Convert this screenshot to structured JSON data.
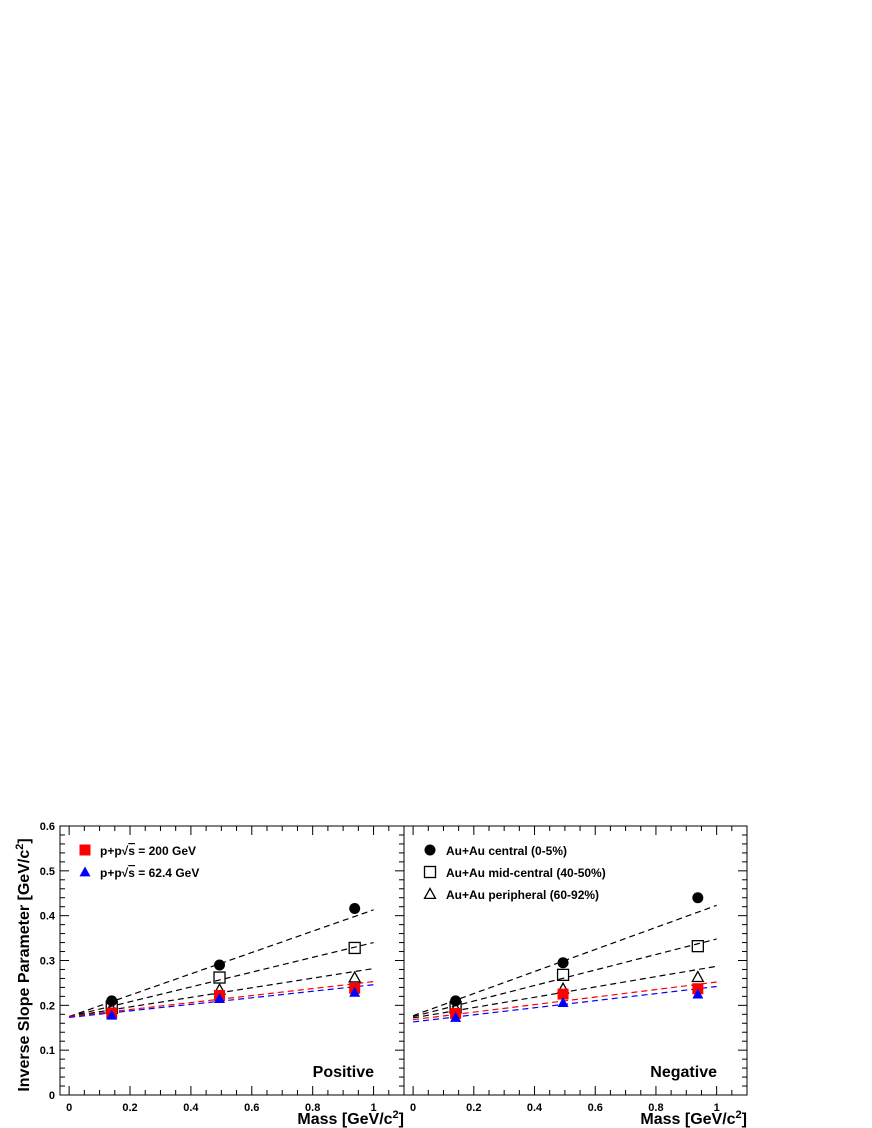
{
  "figure": {
    "ylabel": "Inverse Slope Parameter [GeV/c",
    "ylabel_sup": "2",
    "ylabel_close": "]",
    "xlabel": "Mass [GeV/c",
    "xlabel_sup": "2",
    "xlabel_close": "]"
  },
  "legend_left": [
    {
      "text": "p+p",
      "sqrt": "s",
      "tail": " = 200 GeV",
      "color": "#ff0000",
      "marker": "square-filled"
    },
    {
      "text": "p+p",
      "sqrt": "s",
      "tail": " = 62.4 GeV",
      "color": "#0000ff",
      "marker": "triangle-filled"
    }
  ],
  "legend_right": [
    {
      "text": "Au+Au central (0-5%)",
      "color": "#000000",
      "marker": "circle-filled"
    },
    {
      "text": "Au+Au mid-central (40-50%)",
      "color": "#000000",
      "marker": "square-open"
    },
    {
      "text": "Au+Au peripheral (60-92%)",
      "color": "#000000",
      "marker": "triangle-open"
    }
  ],
  "chart_data": [
    {
      "type": "scatter",
      "panel_label": "Positive",
      "xlim": [
        -0.03,
        1.1
      ],
      "ylim": [
        0,
        0.6
      ],
      "x_ticks": [
        "0",
        "0.2",
        "0.4",
        "0.6",
        "0.8",
        "1"
      ],
      "y_ticks": [
        "0",
        "0.1",
        "0.2",
        "0.3",
        "0.4",
        "0.5",
        "0.6"
      ],
      "series": [
        {
          "key": "auau_central",
          "marker": "circle-filled",
          "color": "#000000",
          "points": [
            [
              0.14,
              0.21
            ],
            [
              0.494,
              0.29
            ],
            [
              0.938,
              0.416
            ]
          ],
          "fit": [
            [
              0,
              0.175
            ],
            [
              1.0,
              0.413
            ]
          ]
        },
        {
          "key": "auau_midcentral",
          "marker": "square-open",
          "color": "#000000",
          "points": [
            [
              0.14,
              0.197
            ],
            [
              0.494,
              0.262
            ],
            [
              0.938,
              0.328
            ]
          ],
          "fit": [
            [
              0,
              0.175
            ],
            [
              1.0,
              0.34
            ]
          ]
        },
        {
          "key": "auau_peripheral",
          "marker": "triangle-open",
          "color": "#000000",
          "points": [
            [
              0.14,
              0.192
            ],
            [
              0.494,
              0.235
            ],
            [
              0.938,
              0.262
            ]
          ],
          "fit": [
            [
              0,
              0.175
            ],
            [
              1.0,
              0.282
            ]
          ]
        },
        {
          "key": "pp_200",
          "marker": "square-filled",
          "color": "#ff0000",
          "points": [
            [
              0.14,
              0.183
            ],
            [
              0.494,
              0.222
            ],
            [
              0.938,
              0.238
            ]
          ],
          "fit": [
            [
              0,
              0.175
            ],
            [
              1.0,
              0.253
            ]
          ]
        },
        {
          "key": "pp_62",
          "marker": "triangle-filled",
          "color": "#0000ff",
          "points": [
            [
              0.14,
              0.178
            ],
            [
              0.494,
              0.215
            ],
            [
              0.938,
              0.229
            ]
          ],
          "fit": [
            [
              0,
              0.173
            ],
            [
              1.0,
              0.246
            ]
          ]
        }
      ]
    },
    {
      "type": "scatter",
      "panel_label": "Negative",
      "xlim": [
        -0.03,
        1.1
      ],
      "ylim": [
        0,
        0.6
      ],
      "x_ticks": [
        "0",
        "0.2",
        "0.4",
        "0.6",
        "0.8",
        "1"
      ],
      "y_ticks": [],
      "series": [
        {
          "key": "auau_central",
          "marker": "circle-filled",
          "color": "#000000",
          "points": [
            [
              0.14,
              0.21
            ],
            [
              0.494,
              0.295
            ],
            [
              0.938,
              0.44
            ]
          ],
          "fit": [
            [
              0,
              0.177
            ],
            [
              1.0,
              0.423
            ]
          ]
        },
        {
          "key": "auau_midcentral",
          "marker": "square-open",
          "color": "#000000",
          "points": [
            [
              0.14,
              0.196
            ],
            [
              0.494,
              0.268
            ],
            [
              0.938,
              0.332
            ]
          ],
          "fit": [
            [
              0,
              0.175
            ],
            [
              1.0,
              0.348
            ]
          ]
        },
        {
          "key": "auau_peripheral",
          "marker": "triangle-open",
          "color": "#000000",
          "points": [
            [
              0.14,
              0.193
            ],
            [
              0.494,
              0.237
            ],
            [
              0.938,
              0.263
            ]
          ],
          "fit": [
            [
              0,
              0.172
            ],
            [
              1.0,
              0.287
            ]
          ]
        },
        {
          "key": "pp_200",
          "marker": "square-filled",
          "color": "#ff0000",
          "points": [
            [
              0.14,
              0.182
            ],
            [
              0.494,
              0.225
            ],
            [
              0.938,
              0.237
            ]
          ],
          "fit": [
            [
              0,
              0.168
            ],
            [
              1.0,
              0.252
            ]
          ]
        },
        {
          "key": "pp_62",
          "marker": "triangle-filled",
          "color": "#0000ff",
          "points": [
            [
              0.14,
              0.173
            ],
            [
              0.494,
              0.206
            ],
            [
              0.938,
              0.225
            ]
          ],
          "fit": [
            [
              0,
              0.163
            ],
            [
              1.0,
              0.242
            ]
          ]
        }
      ]
    }
  ]
}
